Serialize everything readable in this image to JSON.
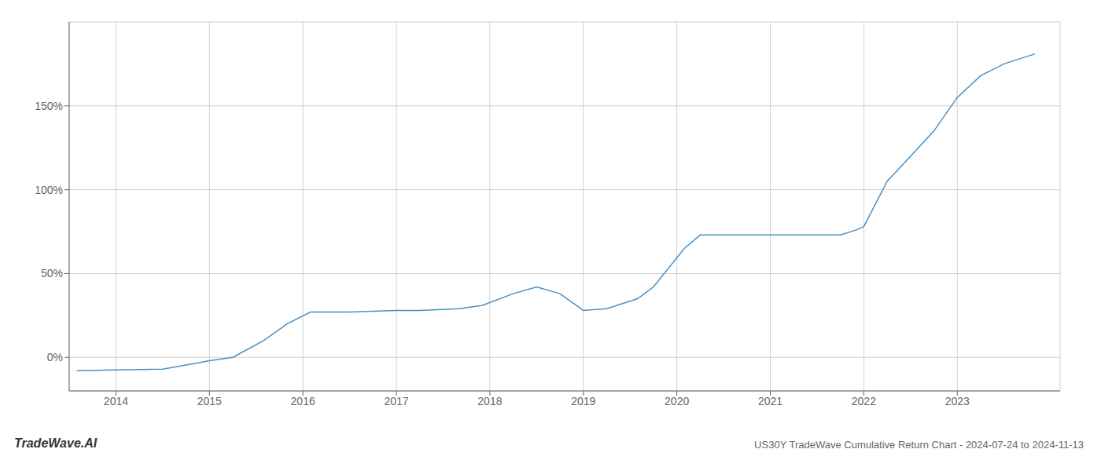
{
  "chart_data": {
    "type": "line",
    "title": "US30Y TradeWave Cumulative Return Chart - 2024-07-24 to 2024-11-13",
    "annotations": [
      "TradeWave.AI"
    ],
    "x": [
      2013.58,
      2014.0,
      2014.5,
      2015.0,
      2015.25,
      2015.58,
      2015.83,
      2016.08,
      2016.5,
      2017.0,
      2017.25,
      2017.67,
      2017.92,
      2018.25,
      2018.5,
      2018.75,
      2019.0,
      2019.25,
      2019.58,
      2019.75,
      2020.08,
      2020.25,
      2020.58,
      2020.75,
      2021.0,
      2021.25,
      2021.5,
      2021.75,
      2021.92,
      2022.0,
      2022.25,
      2022.5,
      2022.75,
      2023.0,
      2023.25,
      2023.5,
      2023.83
    ],
    "values": [
      -8,
      -7.5,
      -7,
      -2,
      0,
      10,
      20,
      27,
      27,
      28,
      28,
      29,
      31,
      38,
      42,
      38,
      28,
      29,
      35,
      42,
      65,
      73,
      73,
      73,
      73,
      73,
      73,
      73,
      76,
      78,
      105,
      120,
      135,
      155,
      168,
      175,
      181
    ],
    "color": "#4a90c4",
    "xlim": [
      2013.5,
      2024.1
    ],
    "xticks": [
      2014,
      2015,
      2016,
      2017,
      2018,
      2019,
      2020,
      2021,
      2022,
      2023
    ],
    "ylim": [
      -20,
      200
    ],
    "yticks": [
      {
        "value": 0,
        "label": "0%"
      },
      {
        "value": 50,
        "label": "50%"
      },
      {
        "value": 100,
        "label": "100%"
      },
      {
        "value": 150,
        "label": "150%"
      }
    ],
    "grid": true
  }
}
